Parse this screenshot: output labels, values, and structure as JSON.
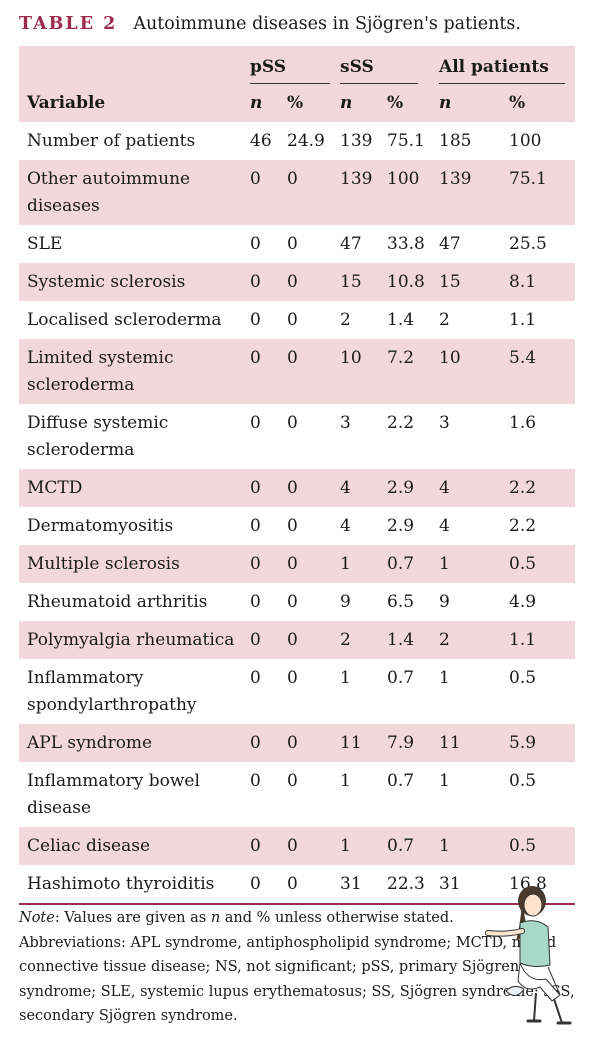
{
  "caption": {
    "label": "TABLE 2",
    "title": "Autoimmune diseases in Sjögren's patients."
  },
  "header": {
    "groups": [
      "pSS",
      "sSS",
      "All patients"
    ],
    "variable": "Variable",
    "sub": [
      "n",
      "%",
      "n",
      "%",
      "n",
      "%"
    ]
  },
  "rows": [
    {
      "variable": "Number of patients",
      "cells": [
        "46",
        "24.9",
        "139",
        "75.1",
        "185",
        "100"
      ]
    },
    {
      "variable": "Other autoimmune diseases",
      "cells": [
        "0",
        "0",
        "139",
        "100",
        "139",
        "75.1"
      ]
    },
    {
      "variable": "SLE",
      "cells": [
        "0",
        "0",
        "47",
        "33.8",
        "47",
        "25.5"
      ]
    },
    {
      "variable": "Systemic sclerosis",
      "cells": [
        "0",
        "0",
        "15",
        "10.8",
        "15",
        "8.1"
      ]
    },
    {
      "variable": "Localised scleroderma",
      "cells": [
        "0",
        "0",
        "2",
        "1.4",
        "2",
        "1.1"
      ]
    },
    {
      "variable": "Limited systemic scleroderma",
      "cells": [
        "0",
        "0",
        "10",
        "7.2",
        "10",
        "5.4"
      ]
    },
    {
      "variable": "Diffuse systemic scleroderma",
      "cells": [
        "0",
        "0",
        "3",
        "2.2",
        "3",
        "1.6"
      ]
    },
    {
      "variable": "MCTD",
      "cells": [
        "0",
        "0",
        "4",
        "2.9",
        "4",
        "2.2"
      ]
    },
    {
      "variable": "Dermatomyositis",
      "cells": [
        "0",
        "0",
        "4",
        "2.9",
        "4",
        "2.2"
      ]
    },
    {
      "variable": "Multiple sclerosis",
      "cells": [
        "0",
        "0",
        "1",
        "0.7",
        "1",
        "0.5"
      ]
    },
    {
      "variable": "Rheumatoid arthritis",
      "cells": [
        "0",
        "0",
        "9",
        "6.5",
        "9",
        "4.9"
      ]
    },
    {
      "variable": "Polymyalgia rheumatica",
      "cells": [
        "0",
        "0",
        "2",
        "1.4",
        "2",
        "1.1"
      ]
    },
    {
      "variable": "Inflammatory spondylarthropathy",
      "cells": [
        "0",
        "0",
        "1",
        "0.7",
        "1",
        "0.5"
      ]
    },
    {
      "variable": "APL syndrome",
      "cells": [
        "0",
        "0",
        "11",
        "7.9",
        "11",
        "5.9"
      ]
    },
    {
      "variable": "Inflammatory bowel disease",
      "cells": [
        "0",
        "0",
        "1",
        "0.7",
        "1",
        "0.5"
      ]
    },
    {
      "variable": "Celiac disease",
      "cells": [
        "0",
        "0",
        "1",
        "0.7",
        "1",
        "0.5"
      ]
    },
    {
      "variable": "Hashimoto thyroiditis",
      "cells": [
        "0",
        "0",
        "31",
        "22.3",
        "31",
        "16.8"
      ]
    }
  ],
  "notes": {
    "note_label": "Note",
    "note_text_1": ": Values are given as ",
    "note_n": "n",
    "note_text_2": " and % unless otherwise stated.",
    "abbreviations": "Abbreviations: APL syndrome, antiphospholipid syndrome; MCTD, mixed connective tissue disease; NS, not significant; pSS, primary Sjögren syndrome; SLE, systemic lupus erythematosus; SS, Sjögren syndrome; sSS, secondary Sjögren syndrome."
  },
  "colors": {
    "accent": "#9c2b4e",
    "shade": "#f2d8dc"
  },
  "figure_icon": "woman-pointing-illustration"
}
